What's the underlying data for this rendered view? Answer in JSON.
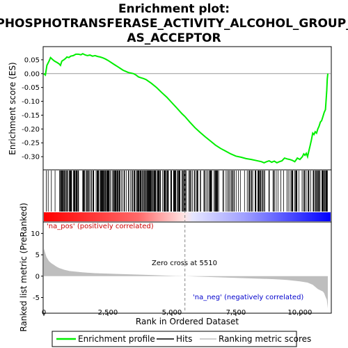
{
  "chart_data": {
    "type": "line",
    "title_lines": [
      "Enrichment plot:",
      "PHOSPHOTRANSFERASE_ACTIVITY_ALCOHOL_GROUP_",
      "AS_ACCEPTOR"
    ],
    "top_panel": {
      "ylabel": "Enrichment score (ES)",
      "ylim": [
        -0.345,
        0.095
      ],
      "yticks": [
        0.05,
        0.0,
        -0.05,
        -0.1,
        -0.15,
        -0.2,
        -0.25,
        -0.3
      ],
      "ytick_labels": [
        "0.05",
        "0.00",
        "-0.05",
        "-0.10",
        "-0.15",
        "-0.20",
        "-0.25",
        "-0.30"
      ],
      "series_name": "Enrichment profile",
      "color": "#00ee00",
      "x": [
        0,
        60,
        120,
        200,
        260,
        330,
        420,
        520,
        600,
        650,
        700,
        780,
        850,
        900,
        980,
        1050,
        1150,
        1250,
        1350,
        1450,
        1520,
        1600,
        1700,
        1800,
        1900,
        2000,
        2100,
        2200,
        2300,
        2400,
        2500,
        2600,
        2700,
        2800,
        2900,
        3000,
        3100,
        3200,
        3300,
        3400,
        3500,
        3600,
        3700,
        3800,
        3900,
        4000,
        4200,
        4400,
        4600,
        4800,
        5000,
        5200,
        5400,
        5510,
        5700,
        5900,
        6100,
        6300,
        6500,
        6700,
        6900,
        7100,
        7300,
        7500,
        7700,
        7900,
        8100,
        8300,
        8500,
        8600,
        8700,
        8800,
        8900,
        9000,
        9100,
        9200,
        9300,
        9400,
        9500,
        9600,
        9700,
        9800,
        9850,
        9900,
        10000,
        10100,
        10150,
        10200,
        10250,
        10300,
        10350,
        10400,
        10450,
        10500,
        10550,
        10600,
        10650,
        10700,
        10750,
        10800,
        10850,
        10900,
        10950,
        11000,
        11030,
        11050,
        11070,
        11090
      ],
      "y": [
        0.0,
        -0.005,
        0.03,
        0.045,
        0.058,
        0.052,
        0.045,
        0.04,
        0.035,
        0.03,
        0.045,
        0.05,
        0.055,
        0.06,
        0.058,
        0.063,
        0.065,
        0.07,
        0.07,
        0.068,
        0.072,
        0.068,
        0.065,
        0.067,
        0.063,
        0.065,
        0.062,
        0.06,
        0.057,
        0.053,
        0.048,
        0.042,
        0.036,
        0.03,
        0.024,
        0.018,
        0.012,
        0.008,
        0.004,
        0.002,
        0.0,
        -0.005,
        -0.012,
        -0.015,
        -0.018,
        -0.022,
        -0.035,
        -0.05,
        -0.068,
        -0.085,
        -0.105,
        -0.125,
        -0.145,
        -0.155,
        -0.175,
        -0.195,
        -0.212,
        -0.228,
        -0.243,
        -0.258,
        -0.27,
        -0.28,
        -0.29,
        -0.298,
        -0.302,
        -0.307,
        -0.31,
        -0.314,
        -0.318,
        -0.322,
        -0.318,
        -0.315,
        -0.32,
        -0.316,
        -0.322,
        -0.318,
        -0.315,
        -0.305,
        -0.308,
        -0.31,
        -0.313,
        -0.318,
        -0.312,
        -0.305,
        -0.31,
        -0.3,
        -0.29,
        -0.295,
        -0.288,
        -0.3,
        -0.28,
        -0.26,
        -0.24,
        -0.215,
        -0.22,
        -0.21,
        -0.215,
        -0.2,
        -0.19,
        -0.175,
        -0.17,
        -0.155,
        -0.14,
        -0.13,
        -0.09,
        -0.06,
        -0.02,
        0.0
      ]
    },
    "hits_panel": {
      "colorbar_left": "#ff0000",
      "colorbar_right": "#0000ff",
      "hit_color": "#000000"
    },
    "bottom_panel": {
      "ylabel": "Ranked list metric (PreRanked)",
      "ylim": [
        -8.5,
        12.5
      ],
      "yticks": [
        10,
        5,
        0,
        -5
      ],
      "ytick_labels": [
        "10",
        "5",
        "0",
        "-5"
      ],
      "series_name": "Ranking metric scores",
      "fill_color": "#bebebe",
      "x": [
        0,
        50,
        100,
        200,
        300,
        400,
        500,
        600,
        800,
        1000,
        1500,
        2000,
        3000,
        4000,
        5000,
        5510,
        6000,
        7000,
        8000,
        9000,
        9500,
        10000,
        10300,
        10500,
        10600,
        10700,
        10800,
        10900,
        10950,
        11000,
        11050,
        11090
      ],
      "y": [
        6.5,
        5.5,
        4.5,
        3.5,
        3.0,
        2.6,
        2.2,
        1.9,
        1.5,
        1.2,
        0.9,
        0.7,
        0.5,
        0.3,
        0.1,
        0.0,
        -0.1,
        -0.3,
        -0.5,
        -0.7,
        -0.9,
        -1.2,
        -1.5,
        -2.0,
        -2.5,
        -3.0,
        -3.3,
        -3.6,
        -4.0,
        -4.8,
        -5.5,
        -7.5
      ],
      "label_pos": "'na_pos' (positively correlated)",
      "label_neg": "'na_neg' (negatively correlated)",
      "zero_cross_label": "Zero cross at 5510",
      "zero_cross": 5510
    },
    "xaxis": {
      "label": "Rank in Ordered Dataset",
      "xlim": [
        0,
        11200
      ],
      "ticks": [
        0,
        2500,
        5000,
        7500,
        10000
      ],
      "tick_labels": [
        "0",
        "2,500",
        "5,000",
        "7,500",
        "10,000"
      ]
    },
    "legend": {
      "placement": "bottom",
      "items": [
        "Enrichment profile",
        "Hits",
        "Ranking metric scores"
      ]
    }
  }
}
